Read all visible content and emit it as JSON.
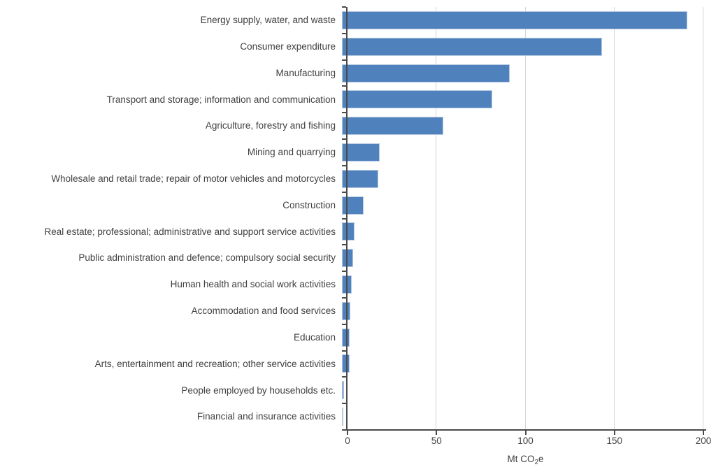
{
  "chart_data": {
    "type": "bar",
    "orientation": "horizontal",
    "title": "",
    "xlabel": "Mt CO2e",
    "xlabel_parts": {
      "main": "Mt CO",
      "sub": "2",
      "end": "e"
    },
    "ylabel": "",
    "xlim": [
      0,
      200
    ],
    "x_ticks": [
      0,
      50,
      100,
      150,
      200
    ],
    "grid": true,
    "legend": false,
    "categories": [
      "Energy supply, water, and waste",
      "Consumer expenditure",
      "Manufacturing",
      "Transport and storage; information and communication",
      "Agriculture, forestry and fishing",
      "Mining and quarrying",
      "Wholesale and retail trade; repair of motor vehicles and motorcycles",
      "Construction",
      "Real estate; professional; administrative and support service activities",
      "Public administration and defence; compulsory social security",
      "Human health and social work activities",
      "Accommodation and food services",
      "Education",
      "Arts, entertainment and recreation; other service activities",
      "People employed by households etc.",
      "Financial and insurance activities"
    ],
    "values": [
      191,
      144,
      93,
      83,
      56,
      21,
      20,
      12,
      7,
      6.3,
      5.3,
      4.7,
      4.3,
      4.4,
      1.1,
      0.9
    ],
    "colors": {
      "bar_fill": "#4f81bd",
      "bar_border": "#b6c9e0",
      "gridline": "#d4d4d4",
      "axis": "#4a4a4a",
      "text": "#3f3f3f"
    }
  }
}
